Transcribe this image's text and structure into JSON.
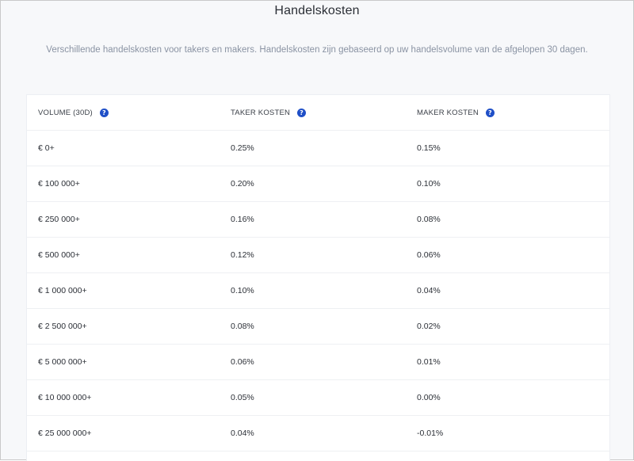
{
  "page": {
    "title": "Handelskosten",
    "subtitle": "Verschillende handelskosten voor takers en makers. Handelskosten zijn gebaseerd op uw handelsvolume van de afgelopen 30 dagen."
  },
  "table": {
    "headers": [
      {
        "label": "VOLUME (30D)",
        "help_icon": "question-icon"
      },
      {
        "label": "TAKER KOSTEN",
        "help_icon": "question-icon"
      },
      {
        "label": "MAKER KOSTEN",
        "help_icon": "question-icon"
      }
    ],
    "help_glyph": "?",
    "accent_color": "#1f4fc7",
    "rows": [
      [
        "€ 0+",
        "0.25%",
        "0.15%"
      ],
      [
        "€ 100 000+",
        "0.20%",
        "0.10%"
      ],
      [
        "€ 250 000+",
        "0.16%",
        "0.08%"
      ],
      [
        "€ 500 000+",
        "0.12%",
        "0.06%"
      ],
      [
        "€ 1 000 000+",
        "0.10%",
        "0.04%"
      ],
      [
        "€ 2 500 000+",
        "0.08%",
        "0.02%"
      ],
      [
        "€ 5 000 000+",
        "0.06%",
        "0.01%"
      ],
      [
        "€ 10 000 000+",
        "0.05%",
        "0.00%"
      ],
      [
        "€ 25 000 000+",
        "0.04%",
        "-0.01%"
      ]
    ]
  }
}
